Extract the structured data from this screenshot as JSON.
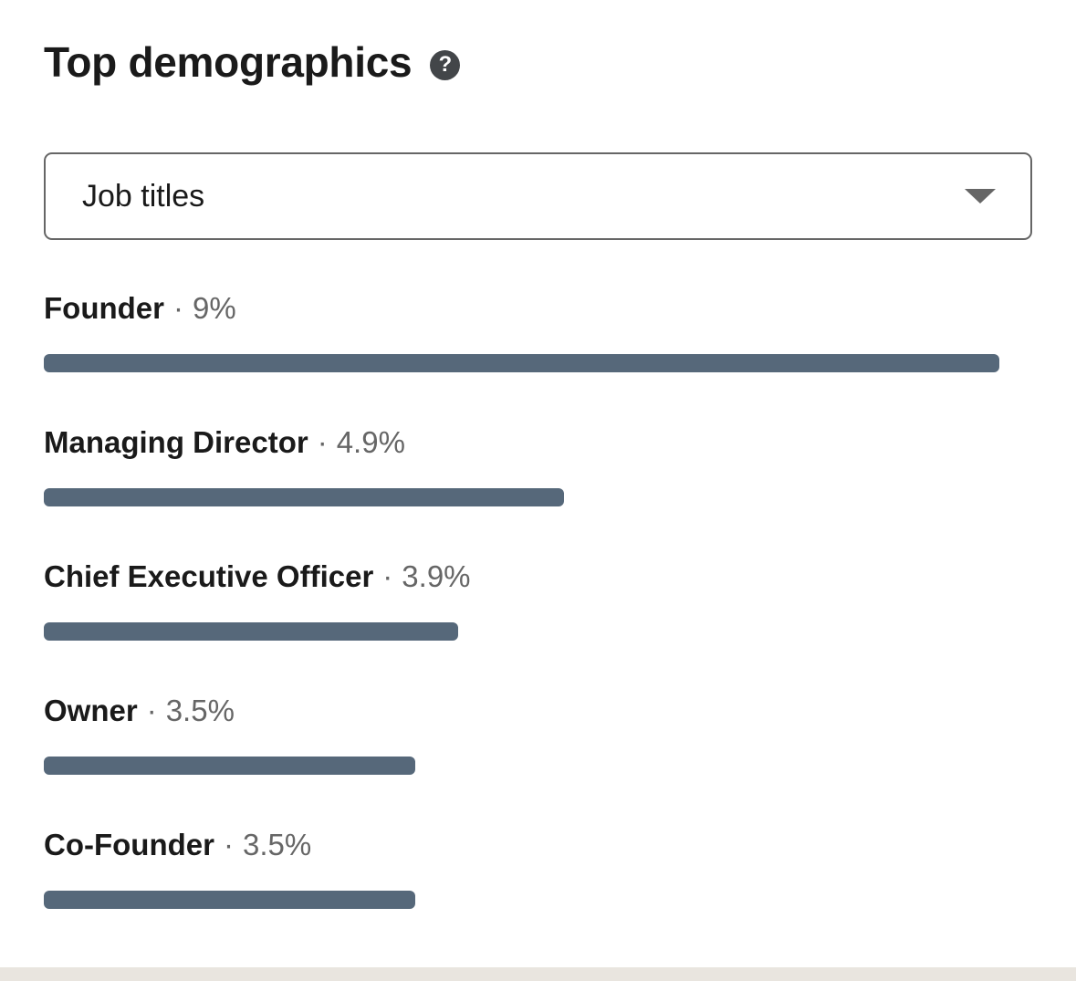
{
  "header": {
    "title": "Top demographics",
    "help_icon_glyph": "?"
  },
  "filter": {
    "selected_value": "Job titles"
  },
  "chart_data": {
    "type": "bar",
    "orientation": "horizontal",
    "title": "Top demographics",
    "legend": "none",
    "grid": false,
    "max_value": 9,
    "bar_color": "#56687a",
    "separator": "·",
    "categories": [
      "Founder",
      "Managing Director",
      "Chief Executive Officer",
      "Owner",
      "Co-Founder"
    ],
    "values": [
      9,
      4.9,
      3.9,
      3.5,
      3.5
    ],
    "items": [
      {
        "label": "Founder",
        "percent": "9%",
        "value": 9
      },
      {
        "label": "Managing Director",
        "percent": "4.9%",
        "value": 4.9
      },
      {
        "label": "Chief Executive Officer",
        "percent": "3.9%",
        "value": 3.9
      },
      {
        "label": "Owner",
        "percent": "3.5%",
        "value": 3.5
      },
      {
        "label": "Co-Founder",
        "percent": "3.5%",
        "value": 3.5
      }
    ]
  },
  "colors": {
    "bar": "#56687a",
    "label_text": "#1a1a1a",
    "secondary_text": "#666666",
    "page_background_strip": "#e9e5df"
  }
}
